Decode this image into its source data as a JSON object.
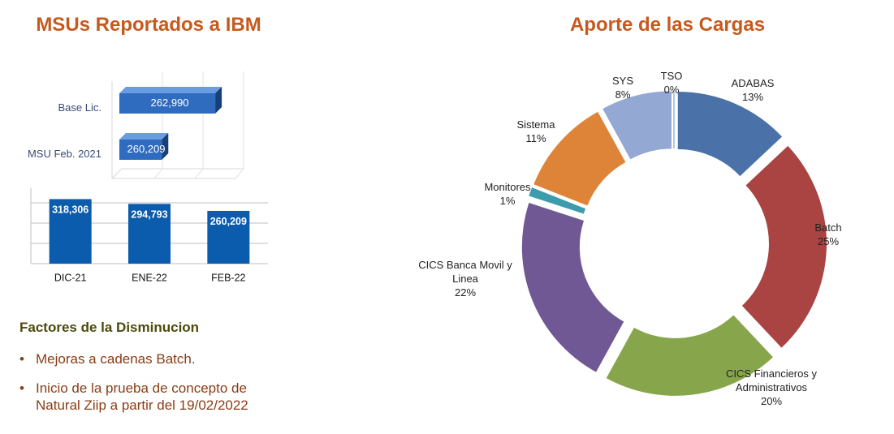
{
  "chart_data": [
    {
      "type": "hbar",
      "title": "MSUs Reportados a IBM",
      "categories": [
        "Base Lic.",
        "MSU Feb. 2021"
      ],
      "values": [
        262990,
        260209
      ],
      "value_labels": [
        "262,990",
        "260,209"
      ],
      "color": "#2f6bbf",
      "xlim": [
        258000,
        264000
      ]
    },
    {
      "type": "bar",
      "categories": [
        "DIC-21",
        "ENE-22",
        "FEB-22"
      ],
      "values": [
        318306,
        294793,
        260209
      ],
      "value_labels": [
        "318,306",
        "294,793",
        "260,209"
      ],
      "color": "#0b5cad",
      "ylim": [
        0,
        350000
      ],
      "grid_values": [
        0,
        100000,
        200000,
        300000
      ],
      "grid": true
    },
    {
      "type": "donut",
      "title": "Aporte de las Cargas",
      "categories": [
        "ADABAS",
        "Batch",
        "CICS Financieros y Administrativos",
        "CICS Banca Movil y Linea",
        "Monitores",
        "Sistema",
        "SYS",
        "TSO"
      ],
      "values": [
        13,
        25,
        20,
        22,
        1,
        11,
        8,
        0
      ],
      "value_labels": [
        "13%",
        "25%",
        "20%",
        "22%",
        "1%",
        "11%",
        "8%",
        "0%"
      ],
      "colors": [
        "#4a72a8",
        "#a94442",
        "#87a64c",
        "#6f5893",
        "#3d9bae",
        "#dd8439",
        "#93a9d3",
        "#b5c6e3"
      ]
    }
  ],
  "notes": {
    "heading": "Factores de la Disminucion",
    "items": [
      "Mejoras a cadenas Batch.",
      "Inicio de la prueba de concepto de Natural Ziip a partir del 19/02/2022"
    ]
  }
}
